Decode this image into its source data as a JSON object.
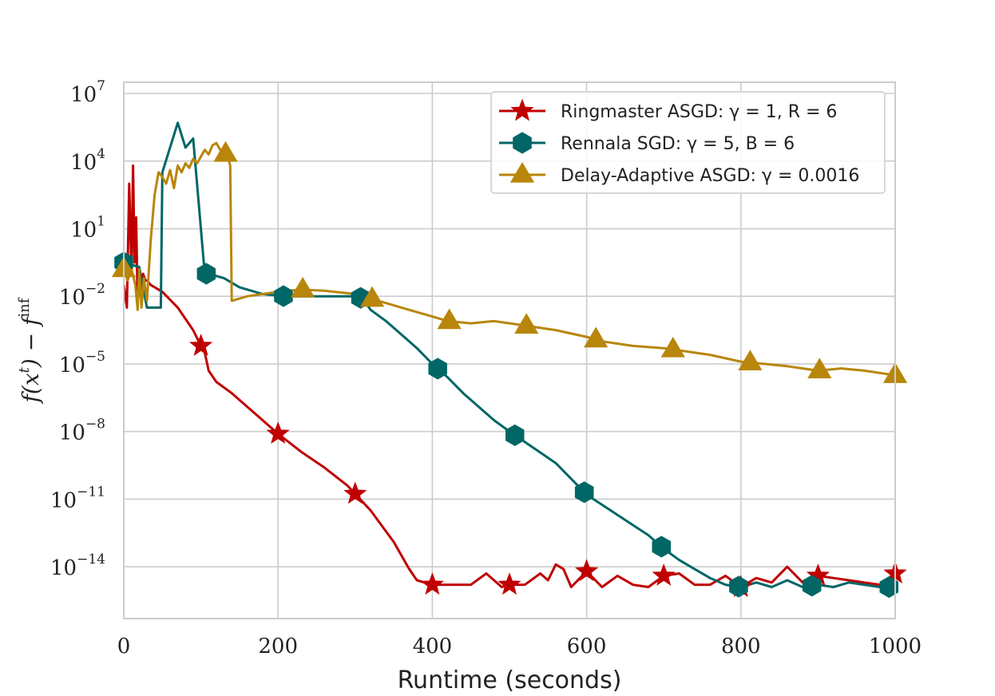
{
  "chart_data": {
    "type": "line",
    "title": "",
    "xlabel": "Runtime (seconds)",
    "ylabel": "f(x^t) − f^inf",
    "ylabel_parts": {
      "f1": "f(x",
      "sup1": "t",
      "f2": ") − f",
      "sup2": "inf"
    },
    "xlim": [
      0,
      1000
    ],
    "ylim_log10": [
      -16.3,
      7.5
    ],
    "y_scale": "log",
    "grid": true,
    "legend_position": "top-right",
    "x_ticks": [
      0,
      200,
      400,
      600,
      800,
      1000
    ],
    "x_tick_labels": [
      "0",
      "200",
      "400",
      "600",
      "800",
      "1000"
    ],
    "y_ticks_log10": [
      7,
      4,
      1,
      -2,
      -5,
      -8,
      -11,
      -14
    ],
    "y_tick_labels": [
      {
        "base": "10",
        "exp": "7"
      },
      {
        "base": "10",
        "exp": "4"
      },
      {
        "base": "10",
        "exp": "1"
      },
      {
        "base": "10",
        "exp": "−2"
      },
      {
        "base": "10",
        "exp": "−5"
      },
      {
        "base": "10",
        "exp": "−8"
      },
      {
        "base": "10",
        "exp": "−11"
      },
      {
        "base": "10",
        "exp": "−14"
      }
    ],
    "series": [
      {
        "name": "Ringmaster ASGD: γ = 1, R = 6",
        "color": "#c00000",
        "marker": "star",
        "x": [
          0,
          4,
          7,
          10,
          12,
          14,
          16,
          18,
          20,
          22,
          25,
          28,
          30,
          35,
          50,
          70,
          90,
          100,
          105,
          110,
          120,
          140,
          160,
          180,
          200,
          230,
          260,
          290,
          320,
          350,
          370,
          380,
          390,
          400,
          420,
          450,
          470,
          490,
          500,
          520,
          540,
          550,
          560,
          570,
          580,
          600,
          620,
          640,
          660,
          680,
          700,
          720,
          740,
          760,
          780,
          800,
          820,
          840,
          860,
          880,
          900,
          920,
          940,
          960,
          980,
          1000
        ],
        "logy": [
          -1.5,
          -2.5,
          3.0,
          -1.0,
          3.8,
          -0.5,
          1.5,
          -2.3,
          -1.2,
          -2.0,
          -1.0,
          -1.3,
          -1.3,
          -1.5,
          -1.8,
          -2.5,
          -3.5,
          -4.2,
          -4.5,
          -5.3,
          -5.8,
          -6.3,
          -6.9,
          -7.5,
          -8.1,
          -8.9,
          -9.6,
          -10.4,
          -11.5,
          -12.9,
          -14.1,
          -14.6,
          -14.7,
          -14.8,
          -14.8,
          -14.8,
          -14.3,
          -14.9,
          -14.8,
          -14.8,
          -14.3,
          -14.6,
          -13.9,
          -14.1,
          -14.9,
          -14.2,
          -14.9,
          -14.4,
          -14.8,
          -14.9,
          -14.4,
          -14.3,
          -14.8,
          -14.8,
          -14.4,
          -14.9,
          -14.5,
          -14.7,
          -14.0,
          -14.7,
          -14.4,
          -14.5,
          -14.6,
          -14.7,
          -14.8,
          -14.3
        ],
        "markers_x": [
          100,
          200,
          300,
          400,
          500,
          600,
          700,
          800,
          900,
          1000
        ]
      },
      {
        "name": "Rennala SGD: γ = 5, B = 6",
        "color": "#006666",
        "marker": "hexagon",
        "x": [
          0,
          20,
          30,
          35,
          48,
          50,
          70,
          80,
          90,
          105,
          110,
          130,
          150,
          180,
          210,
          240,
          270,
          300,
          310,
          320,
          340,
          360,
          380,
          400,
          420,
          440,
          460,
          480,
          500,
          530,
          560,
          600,
          640,
          680,
          700,
          720,
          740,
          760,
          780,
          800,
          820,
          840,
          860,
          880,
          900,
          920,
          940,
          960,
          980,
          1000
        ],
        "logy": [
          -0.5,
          -0.7,
          -2.5,
          -2.5,
          -2.5,
          3.5,
          5.7,
          4.6,
          5.0,
          -1.0,
          -1.0,
          -1.2,
          -1.6,
          -1.9,
          -2.0,
          -2.0,
          -2.0,
          -2.0,
          -2.1,
          -2.6,
          -3.1,
          -3.7,
          -4.3,
          -5.0,
          -5.6,
          -6.3,
          -6.9,
          -7.5,
          -8.0,
          -8.7,
          -9.4,
          -10.8,
          -11.7,
          -12.6,
          -13.2,
          -13.7,
          -14.1,
          -14.5,
          -14.8,
          -14.9,
          -14.7,
          -14.9,
          -14.6,
          -14.9,
          -14.8,
          -14.9,
          -14.7,
          -14.8,
          -14.9,
          -14.9
        ],
        "markers_x": [
          0,
          107,
          207,
          307,
          407,
          507,
          597,
          697,
          797,
          892,
          992
        ]
      },
      {
        "name": "Delay-Adaptive ASGD: γ = 0.0016",
        "color": "#b8860b",
        "marker": "triangle",
        "x": [
          0,
          5,
          10,
          15,
          18,
          20,
          23,
          26,
          30,
          35,
          40,
          45,
          50,
          55,
          60,
          65,
          70,
          75,
          80,
          85,
          90,
          95,
          100,
          105,
          110,
          115,
          120,
          125,
          130,
          135,
          138,
          140,
          160,
          180,
          200,
          230,
          260,
          300,
          330,
          360,
          400,
          420,
          450,
          480,
          520,
          560,
          600,
          620,
          660,
          700,
          720,
          760,
          800,
          830,
          860,
          900,
          930,
          960,
          1000
        ],
        "logy": [
          -0.8,
          -1.3,
          -0.8,
          -1.5,
          -2.6,
          -0.8,
          -2.5,
          -1.2,
          -2.2,
          0.5,
          2.5,
          3.5,
          3.3,
          3.0,
          3.6,
          2.8,
          3.8,
          3.5,
          3.9,
          3.7,
          4.1,
          3.9,
          4.2,
          4.5,
          4.3,
          4.7,
          4.8,
          4.5,
          4.4,
          4.2,
          3.8,
          -2.2,
          -2.0,
          -1.9,
          -1.8,
          -1.7,
          -1.75,
          -1.9,
          -2.2,
          -2.5,
          -2.9,
          -3.1,
          -3.2,
          -3.1,
          -3.3,
          -3.5,
          -3.8,
          -4.0,
          -4.2,
          -4.3,
          -4.4,
          -4.6,
          -4.9,
          -5.0,
          -5.1,
          -5.3,
          -5.2,
          -5.3,
          -5.5
        ],
        "markers_x": [
          0,
          132,
          232,
          322,
          422,
          522,
          612,
          712,
          812,
          902,
          1000
        ]
      }
    ]
  }
}
